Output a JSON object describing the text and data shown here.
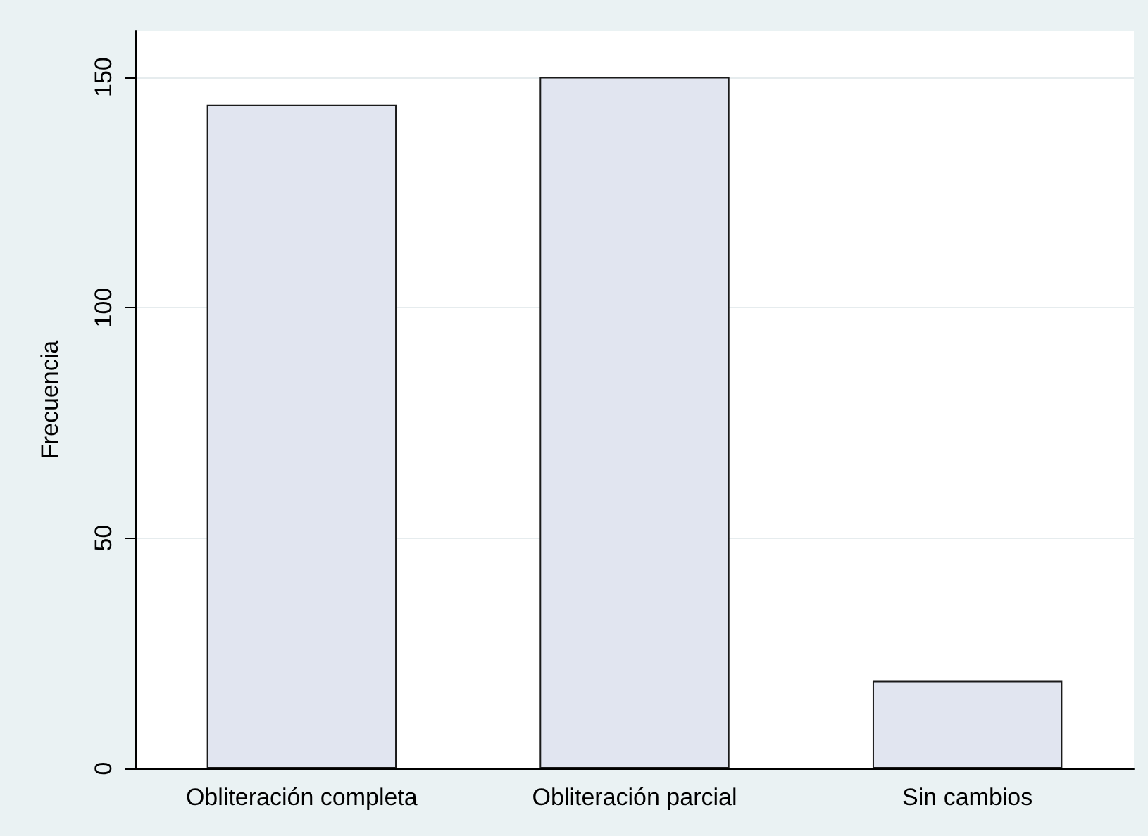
{
  "chart_data": {
    "type": "bar",
    "ylabel": "Frecuencia",
    "categories": [
      "Obliteración completa",
      "Obliteración parcial",
      "Sin cambios"
    ],
    "values": [
      144,
      150,
      19
    ],
    "color": "#e1e5f0",
    "ylim": [
      0,
      160
    ],
    "yticks": [
      0,
      50,
      100,
      150
    ],
    "grid": "y"
  }
}
